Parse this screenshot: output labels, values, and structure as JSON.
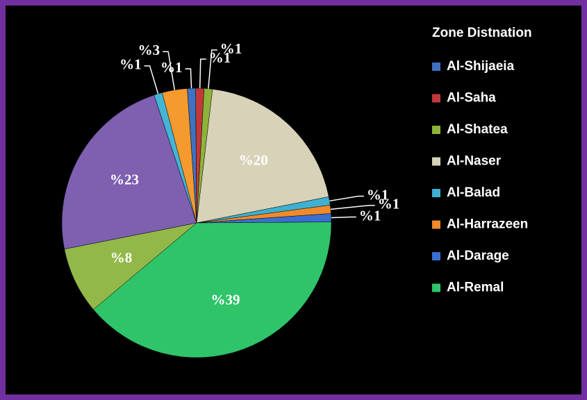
{
  "chart_data": {
    "type": "pie",
    "title": "Zone Distnation",
    "categories": [
      "Al-Shijaeia",
      "Al-Saha",
      "Al-Shatea",
      "Al-Naser",
      "Al-Balad",
      "Al-Harrazeen",
      "Al-Darage",
      "Al-Remal",
      null,
      null,
      null,
      null
    ],
    "values": [
      1,
      1,
      1,
      20,
      1,
      1,
      1,
      39,
      8,
      23,
      1,
      3
    ],
    "value_labels": [
      "%1",
      "%1",
      "%1",
      "%20",
      "%1",
      "%1",
      "%1",
      "%39",
      "%8",
      "%23",
      "%1",
      "%3"
    ],
    "colors": [
      "#3f72c0",
      "#c0393b",
      "#8db33a",
      "#d8d2b8",
      "#3fb0d0",
      "#f08a2a",
      "#3a6fd0",
      "#2fc46a",
      "#93b84a",
      "#7e5fb0",
      "#45b5d6",
      "#f59a2e"
    ]
  }
}
